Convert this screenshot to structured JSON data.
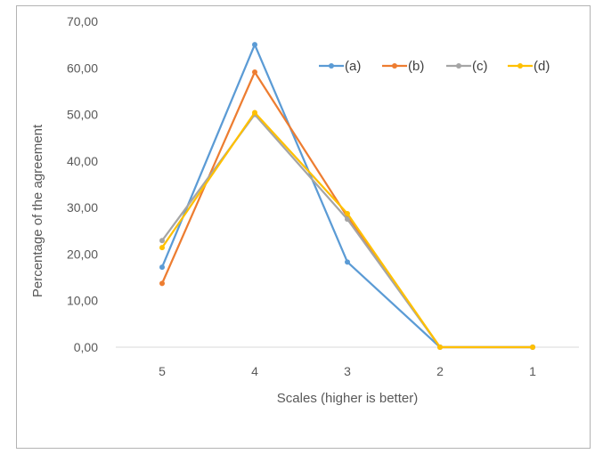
{
  "chart_data": {
    "type": "line",
    "title": "",
    "xlabel": "Scales  (higher is better)",
    "ylabel": "Percentage of the agreement",
    "categories": [
      "5",
      "4",
      "3",
      "2",
      "1"
    ],
    "ylim": [
      0,
      70
    ],
    "yticks": [
      "0,00",
      "10,00",
      "20,00",
      "30,00",
      "40,00",
      "50,00",
      "60,00",
      "70,00"
    ],
    "grid": false,
    "legend_position": "top-right",
    "series": [
      {
        "name": "(a)",
        "color": "#5b9bd5",
        "values": [
          17.2,
          65.0,
          18.3,
          0,
          0
        ]
      },
      {
        "name": "(b)",
        "color": "#ed7d31",
        "values": [
          13.7,
          59.1,
          28.0,
          0,
          0
        ]
      },
      {
        "name": "(c)",
        "color": "#a5a5a5",
        "values": [
          22.9,
          50.0,
          27.5,
          0,
          0
        ]
      },
      {
        "name": "(d)",
        "color": "#ffc000",
        "values": [
          21.4,
          50.4,
          28.7,
          0,
          0
        ]
      }
    ]
  }
}
